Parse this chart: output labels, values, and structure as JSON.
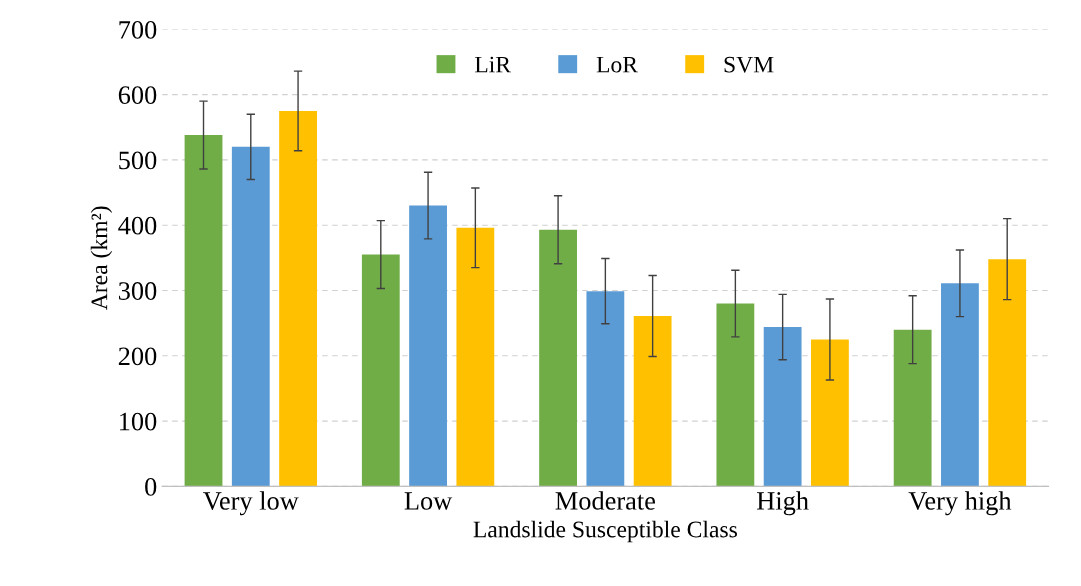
{
  "chart_data": {
    "type": "bar",
    "xlabel": "Landslide Susceptible Class",
    "ylabel": "Area (km²)",
    "categories": [
      "Very low",
      "Low",
      "Moderate",
      "High",
      "Very high"
    ],
    "series": [
      {
        "name": "LiR",
        "color": "#70ad47",
        "values": [
          538,
          355,
          393,
          280,
          240
        ],
        "errors": [
          52,
          52,
          52,
          51,
          52
        ]
      },
      {
        "name": "LoR",
        "color": "#5b9bd5",
        "values": [
          520,
          430,
          299,
          244,
          311
        ],
        "errors": [
          50,
          51,
          50,
          50,
          51
        ]
      },
      {
        "name": "SVM",
        "color": "#ffc000",
        "values": [
          575,
          396,
          261,
          225,
          348
        ],
        "errors": [
          61,
          61,
          62,
          62,
          62
        ]
      }
    ],
    "ylim": [
      0,
      700
    ],
    "yticks": [
      0,
      100,
      200,
      300,
      400,
      500,
      600,
      700
    ],
    "grid": "y",
    "legend": "top"
  }
}
